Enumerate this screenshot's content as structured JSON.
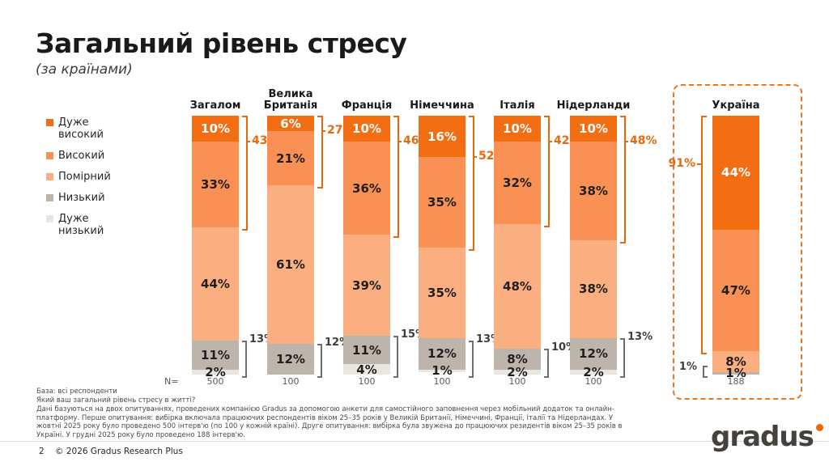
{
  "header": {
    "title": "Загальний рівень стресу",
    "subtitle": "(за країнами)"
  },
  "colors": {
    "very_high": "#F36D13",
    "high": "#F89153",
    "moderate": "#FBAF81",
    "low": "#BDB5AC",
    "very_low": "#EAE7E1",
    "accent": "#E8690B",
    "bracket_gray": "#6e6e6e"
  },
  "legend": {
    "items": [
      {
        "label": "Дуже високий",
        "color_key": "very_high"
      },
      {
        "label": "Високий",
        "color_key": "high"
      },
      {
        "label": "Помірний",
        "color_key": "moderate"
      },
      {
        "label": "Низький",
        "color_key": "low"
      },
      {
        "label": "Дуже низький",
        "color_key": "very_low"
      }
    ]
  },
  "chart_data": {
    "type": "bar",
    "stacked": true,
    "value_suffix": "%",
    "ylim": [
      0,
      100
    ],
    "series_labels": [
      "Дуже високий",
      "Високий",
      "Помірний",
      "Низький",
      "Дуже низький"
    ],
    "n_label": "N=",
    "countries": [
      {
        "name": "Загалом",
        "values": [
          10,
          33,
          44,
          11,
          2
        ],
        "n": "500",
        "top_bracket": "43%",
        "bottom_bracket": "13%",
        "highlighted": false
      },
      {
        "name": "Велика Британія",
        "values": [
          6,
          21,
          61,
          12,
          0
        ],
        "n": "100",
        "top_bracket": "27%",
        "bottom_bracket": "12%",
        "highlighted": false
      },
      {
        "name": "Франція",
        "values": [
          10,
          36,
          39,
          11,
          4
        ],
        "n": "100",
        "top_bracket": "46%",
        "bottom_bracket": "15%",
        "highlighted": false
      },
      {
        "name": "Німеччина",
        "values": [
          16,
          35,
          35,
          12,
          1
        ],
        "n": "100",
        "top_bracket": "52%",
        "bottom_bracket": "13%",
        "highlighted": false
      },
      {
        "name": "Італія",
        "values": [
          10,
          32,
          48,
          8,
          2
        ],
        "n": "100",
        "top_bracket": "42%",
        "bottom_bracket": "10%",
        "highlighted": false
      },
      {
        "name": "Нідерланди",
        "values": [
          10,
          38,
          38,
          12,
          2
        ],
        "n": "100",
        "top_bracket": "48%",
        "bottom_bracket": "13%",
        "highlighted": false
      },
      {
        "name": "Україна",
        "values": [
          44,
          47,
          8,
          1,
          0
        ],
        "n": "188",
        "top_bracket": "91%",
        "bottom_bracket": "1%",
        "highlighted": true
      }
    ]
  },
  "footer": {
    "base": "База: всі респонденти",
    "question": "Який ваш загальний рівень стресу в житті?",
    "methodology": "Дані базуються на двох опитуваннях, проведених компанією Gradus за допомогою анкети для самостійного заповнення через мобільний додаток та онлайн-платформу. Перше опитування: вибірка включала працюючих респондентів віком 25–35 років у Великій Британії, Німеччині, Франції, Італії та Нідерландах. У жовтні 2025 року було проведено 500 інтерв'ю (по 100 у кожній країні). Друге опитування: вибірка була звужена до працюючих резидентів віком 25–35 років в Україні. У грудні 2025 року було проведено 188 інтерв'ю.",
    "page_number": "2",
    "copyright": "© 2026 Gradus Research Plus",
    "logo_text": "gradus"
  }
}
